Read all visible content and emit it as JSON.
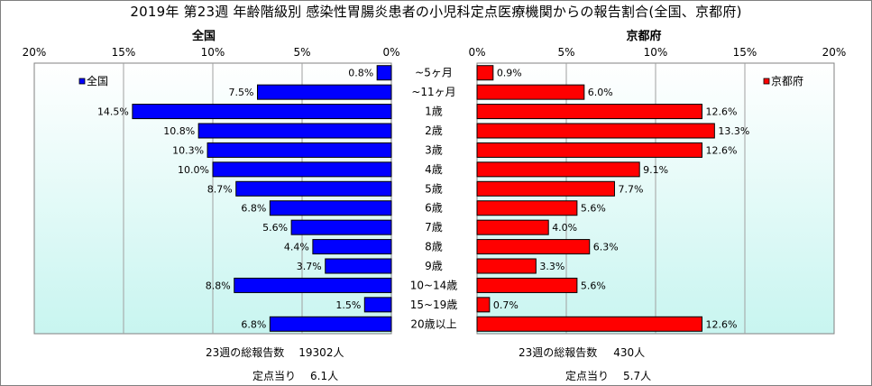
{
  "title": "2019年 第23週 年齢階級別 感染性胃腸炎患者の小児科定点医療機関からの報告割合(全国、京都府)",
  "colors": {
    "national": "#0000ff",
    "kyoto": "#ff0000",
    "plot_top": "#ffffff",
    "plot_bottom": "#c8f5f0"
  },
  "chart_data": [
    {
      "type": "bar",
      "orientation": "horizontal-reversed",
      "title": "全国",
      "categories": [
        "~5ヶ月",
        "~11ヶ月",
        "1歳",
        "2歳",
        "3歳",
        "4歳",
        "5歳",
        "6歳",
        "7歳",
        "8歳",
        "9歳",
        "10~14歳",
        "15~19歳",
        "20歳以上"
      ],
      "series": [
        {
          "name": "全国",
          "values": [
            0.8,
            7.5,
            14.5,
            10.8,
            10.3,
            10.0,
            8.7,
            6.8,
            5.6,
            4.4,
            3.7,
            8.8,
            1.5,
            6.8
          ]
        }
      ],
      "value_labels": [
        "0.8%",
        "7.5%",
        "14.5%",
        "10.8%",
        "10.3%",
        "10.0%",
        "8.7%",
        "6.8%",
        "5.6%",
        "4.4%",
        "3.7%",
        "8.8%",
        "1.5%",
        "6.8%"
      ],
      "xlim": [
        0,
        20
      ],
      "ticks": [
        "20%",
        "15%",
        "10%",
        "5%",
        "0%"
      ],
      "legend_position": "top-left"
    },
    {
      "type": "bar",
      "orientation": "horizontal",
      "title": "京都府",
      "categories": [
        "~5ヶ月",
        "~11ヶ月",
        "1歳",
        "2歳",
        "3歳",
        "4歳",
        "5歳",
        "6歳",
        "7歳",
        "8歳",
        "9歳",
        "10~14歳",
        "15~19歳",
        "20歳以上"
      ],
      "series": [
        {
          "name": "京都府",
          "values": [
            0.9,
            6.0,
            12.6,
            13.3,
            12.6,
            9.1,
            7.7,
            5.6,
            4.0,
            6.3,
            3.3,
            5.6,
            0.7,
            12.6
          ]
        }
      ],
      "value_labels": [
        "0.9%",
        "6.0%",
        "12.6%",
        "13.3%",
        "12.6%",
        "9.1%",
        "7.7%",
        "5.6%",
        "4.0%",
        "6.3%",
        "3.3%",
        "5.6%",
        "0.7%",
        "12.6%"
      ],
      "xlim": [
        0,
        20
      ],
      "ticks": [
        "0%",
        "5%",
        "10%",
        "15%",
        "20%"
      ],
      "legend_position": "top-right"
    }
  ],
  "footer": {
    "national": {
      "reports_label": "23週の総報告数",
      "reports_value": "19302人",
      "per_site_label": "定点当り",
      "per_site_value": "6.1人"
    },
    "kyoto": {
      "reports_label": "23週の総報告数",
      "reports_value": "430人",
      "per_site_label": "定点当り",
      "per_site_value": "5.7人"
    }
  }
}
